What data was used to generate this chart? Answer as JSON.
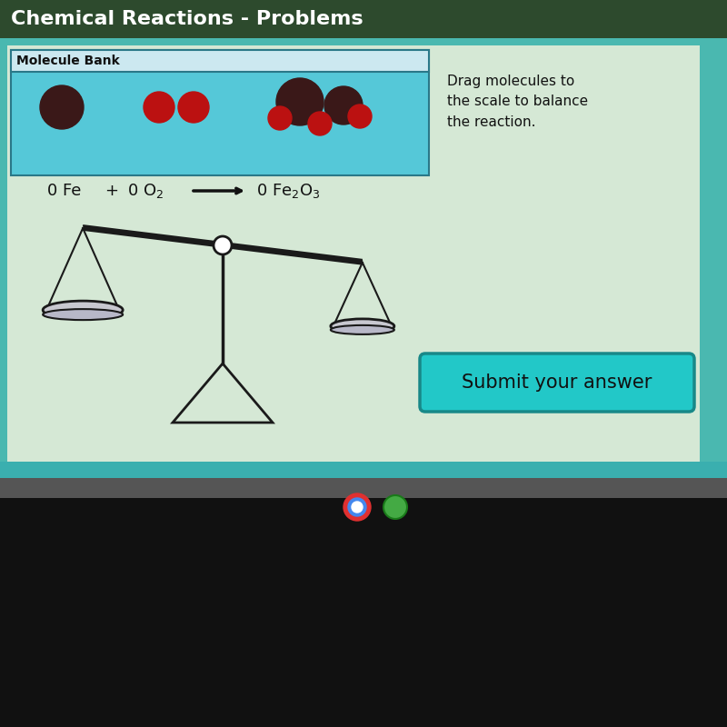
{
  "title": "Chemical Reactions - Problems",
  "title_bg": "#2d4a2d",
  "title_color": "#ffffff",
  "title_fontsize": 16,
  "main_bg": "#4ab8b0",
  "content_bg": "#d5e8d5",
  "content_bg2": "#cce0cc",
  "molecule_bank_label": "Molecule Bank",
  "molecule_bank_bg": "#55c8d8",
  "molecule_bank_header_bg": "#cce8f0",
  "molecule_bank_border": "#2a7888",
  "instruction_text": "Drag molecules to\nthe scale to balance\nthe reaction.",
  "submit_text": "Submit your answer",
  "submit_bg": "#22c8c8",
  "submit_border": "#188888",
  "fe_color": "#3a1818",
  "o_color": "#bb1111",
  "scale_color": "#1a1a1a",
  "scale_beam_tilt": 7,
  "taskbar_bg": "#555555",
  "bottom_bg": "#111111",
  "teal_strip": "#3aafaf"
}
